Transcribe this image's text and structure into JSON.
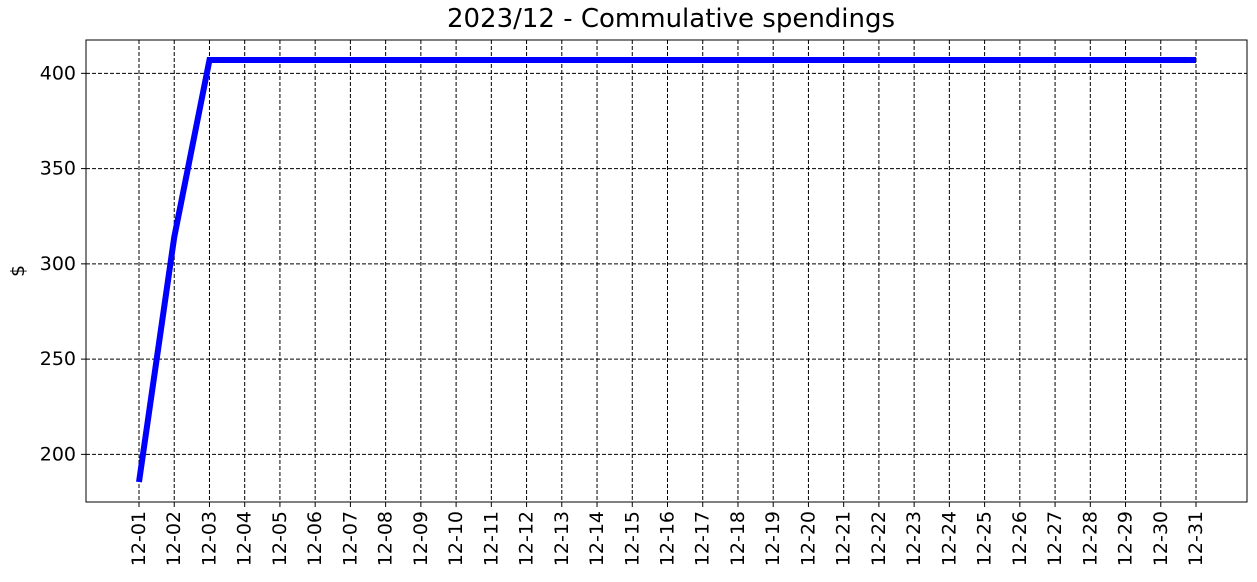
{
  "chart_data": {
    "type": "line",
    "title": "2023/12 - Commulative spendings",
    "xlabel": "",
    "ylabel": "$",
    "categories": [
      "12-01",
      "12-02",
      "12-03",
      "12-04",
      "12-05",
      "12-06",
      "12-07",
      "12-08",
      "12-09",
      "12-10",
      "12-11",
      "12-12",
      "12-13",
      "12-14",
      "12-15",
      "12-16",
      "12-17",
      "12-18",
      "12-19",
      "12-20",
      "12-21",
      "12-22",
      "12-23",
      "12-24",
      "12-25",
      "12-26",
      "12-27",
      "12-28",
      "12-29",
      "12-30",
      "12-31"
    ],
    "series": [
      {
        "values": [
          185.5,
          314,
          407,
          407,
          407,
          407,
          407,
          407,
          407,
          407,
          407,
          407,
          407,
          407,
          407,
          407,
          407,
          407,
          407,
          407,
          407,
          407,
          407,
          407,
          407,
          407,
          407,
          407,
          407,
          407,
          407
        ]
      }
    ],
    "yticks": [
      200,
      250,
      300,
      350,
      400
    ],
    "ylim": [
      175,
      417.5
    ],
    "grid": true,
    "colors": {
      "line": "#0000ff",
      "grid": "#000000"
    }
  }
}
